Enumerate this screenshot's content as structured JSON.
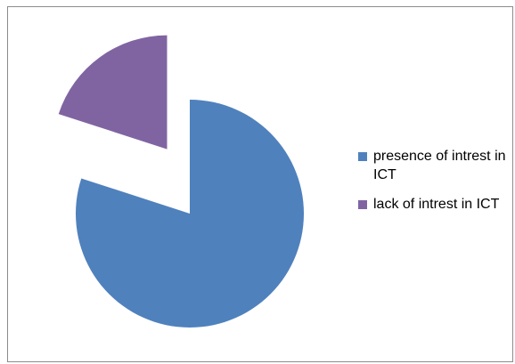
{
  "chart_data": {
    "type": "pie",
    "categories": [
      "presence of intrest in ICT",
      "lack of intrest in ICT"
    ],
    "values": [
      80,
      20
    ],
    "colors": [
      "#4f81bd",
      "#8064a2"
    ],
    "legend_position": "right",
    "exploded": "lack of intrest in ICT",
    "title": ""
  }
}
